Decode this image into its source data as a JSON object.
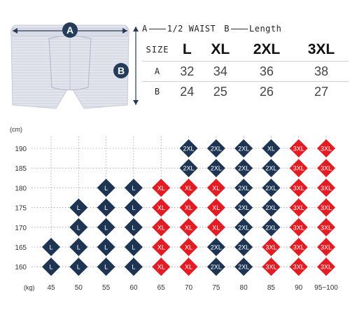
{
  "product": {
    "marker_a": "A",
    "marker_b": "B",
    "colors": {
      "fabric": "#e3e5ee",
      "stripe": "#cfd2de",
      "marker": "#253b5a"
    }
  },
  "legend": {
    "a_key": "A",
    "a_text": "1/2 WAIST",
    "b_key": "B",
    "b_text": "Length"
  },
  "size_table": {
    "header_label": "SIZE",
    "sizes": [
      "L",
      "XL",
      "2XL",
      "3XL"
    ],
    "rows": [
      {
        "label": "A",
        "values": [
          "32",
          "34",
          "36",
          "38"
        ]
      },
      {
        "label": "B",
        "values": [
          "24",
          "25",
          "26",
          "27"
        ]
      }
    ]
  },
  "chart_data": {
    "type": "heatmap",
    "y_unit": "(cm)",
    "x_unit": "(kg)",
    "x_labels": [
      "45",
      "50",
      "55",
      "60",
      "65",
      "70",
      "75",
      "80",
      "85",
      "90",
      "95~100"
    ],
    "y_labels": [
      "190",
      "185",
      "180",
      "175",
      "170",
      "165",
      "160"
    ],
    "grid": "dotted",
    "colors": {
      "navy": "#1d3552",
      "red": "#e31c23"
    },
    "cells": [
      [
        "",
        "",
        "",
        "",
        "",
        "2XL",
        "2XL",
        "2XL",
        "XL",
        "3XL",
        "3XL"
      ],
      [
        "",
        "",
        "",
        "",
        "",
        "2XL",
        "2XL",
        "2XL",
        "2XL",
        "3XL",
        "3XL"
      ],
      [
        "",
        "",
        "L",
        "L",
        "XL",
        "XL",
        "XL",
        "2XL",
        "2XL",
        "3XL",
        "3XL"
      ],
      [
        "",
        "L",
        "L",
        "L",
        "XL",
        "XL",
        "XL",
        "2XL",
        "2XL",
        "3XL",
        "3XL"
      ],
      [
        "",
        "L",
        "L",
        "L",
        "XL",
        "XL",
        "XL",
        "2XL",
        "2XL",
        "3XL",
        "3XL"
      ],
      [
        "L",
        "L",
        "L",
        "L",
        "XL",
        "XL",
        "2XL",
        "2XL",
        "3XL",
        "3XL",
        "3XL"
      ],
      [
        "L",
        "L",
        "L",
        "L",
        "XL",
        "XL",
        "2XL",
        "2XL",
        "3XL",
        "3XL",
        "3XL"
      ]
    ],
    "cell_colors": [
      [
        "",
        "",
        "",
        "",
        "",
        "n",
        "n",
        "n",
        "n",
        "r",
        "r"
      ],
      [
        "",
        "",
        "",
        "",
        "",
        "n",
        "n",
        "n",
        "n",
        "r",
        "r"
      ],
      [
        "",
        "",
        "n",
        "n",
        "r",
        "r",
        "r",
        "n",
        "n",
        "r",
        "r"
      ],
      [
        "",
        "n",
        "n",
        "n",
        "r",
        "r",
        "r",
        "n",
        "n",
        "r",
        "r"
      ],
      [
        "",
        "n",
        "n",
        "n",
        "r",
        "r",
        "r",
        "n",
        "n",
        "r",
        "r"
      ],
      [
        "n",
        "n",
        "n",
        "n",
        "r",
        "r",
        "n",
        "n",
        "r",
        "r",
        "r"
      ],
      [
        "n",
        "n",
        "n",
        "n",
        "r",
        "r",
        "n",
        "n",
        "r",
        "r",
        "r"
      ]
    ]
  }
}
